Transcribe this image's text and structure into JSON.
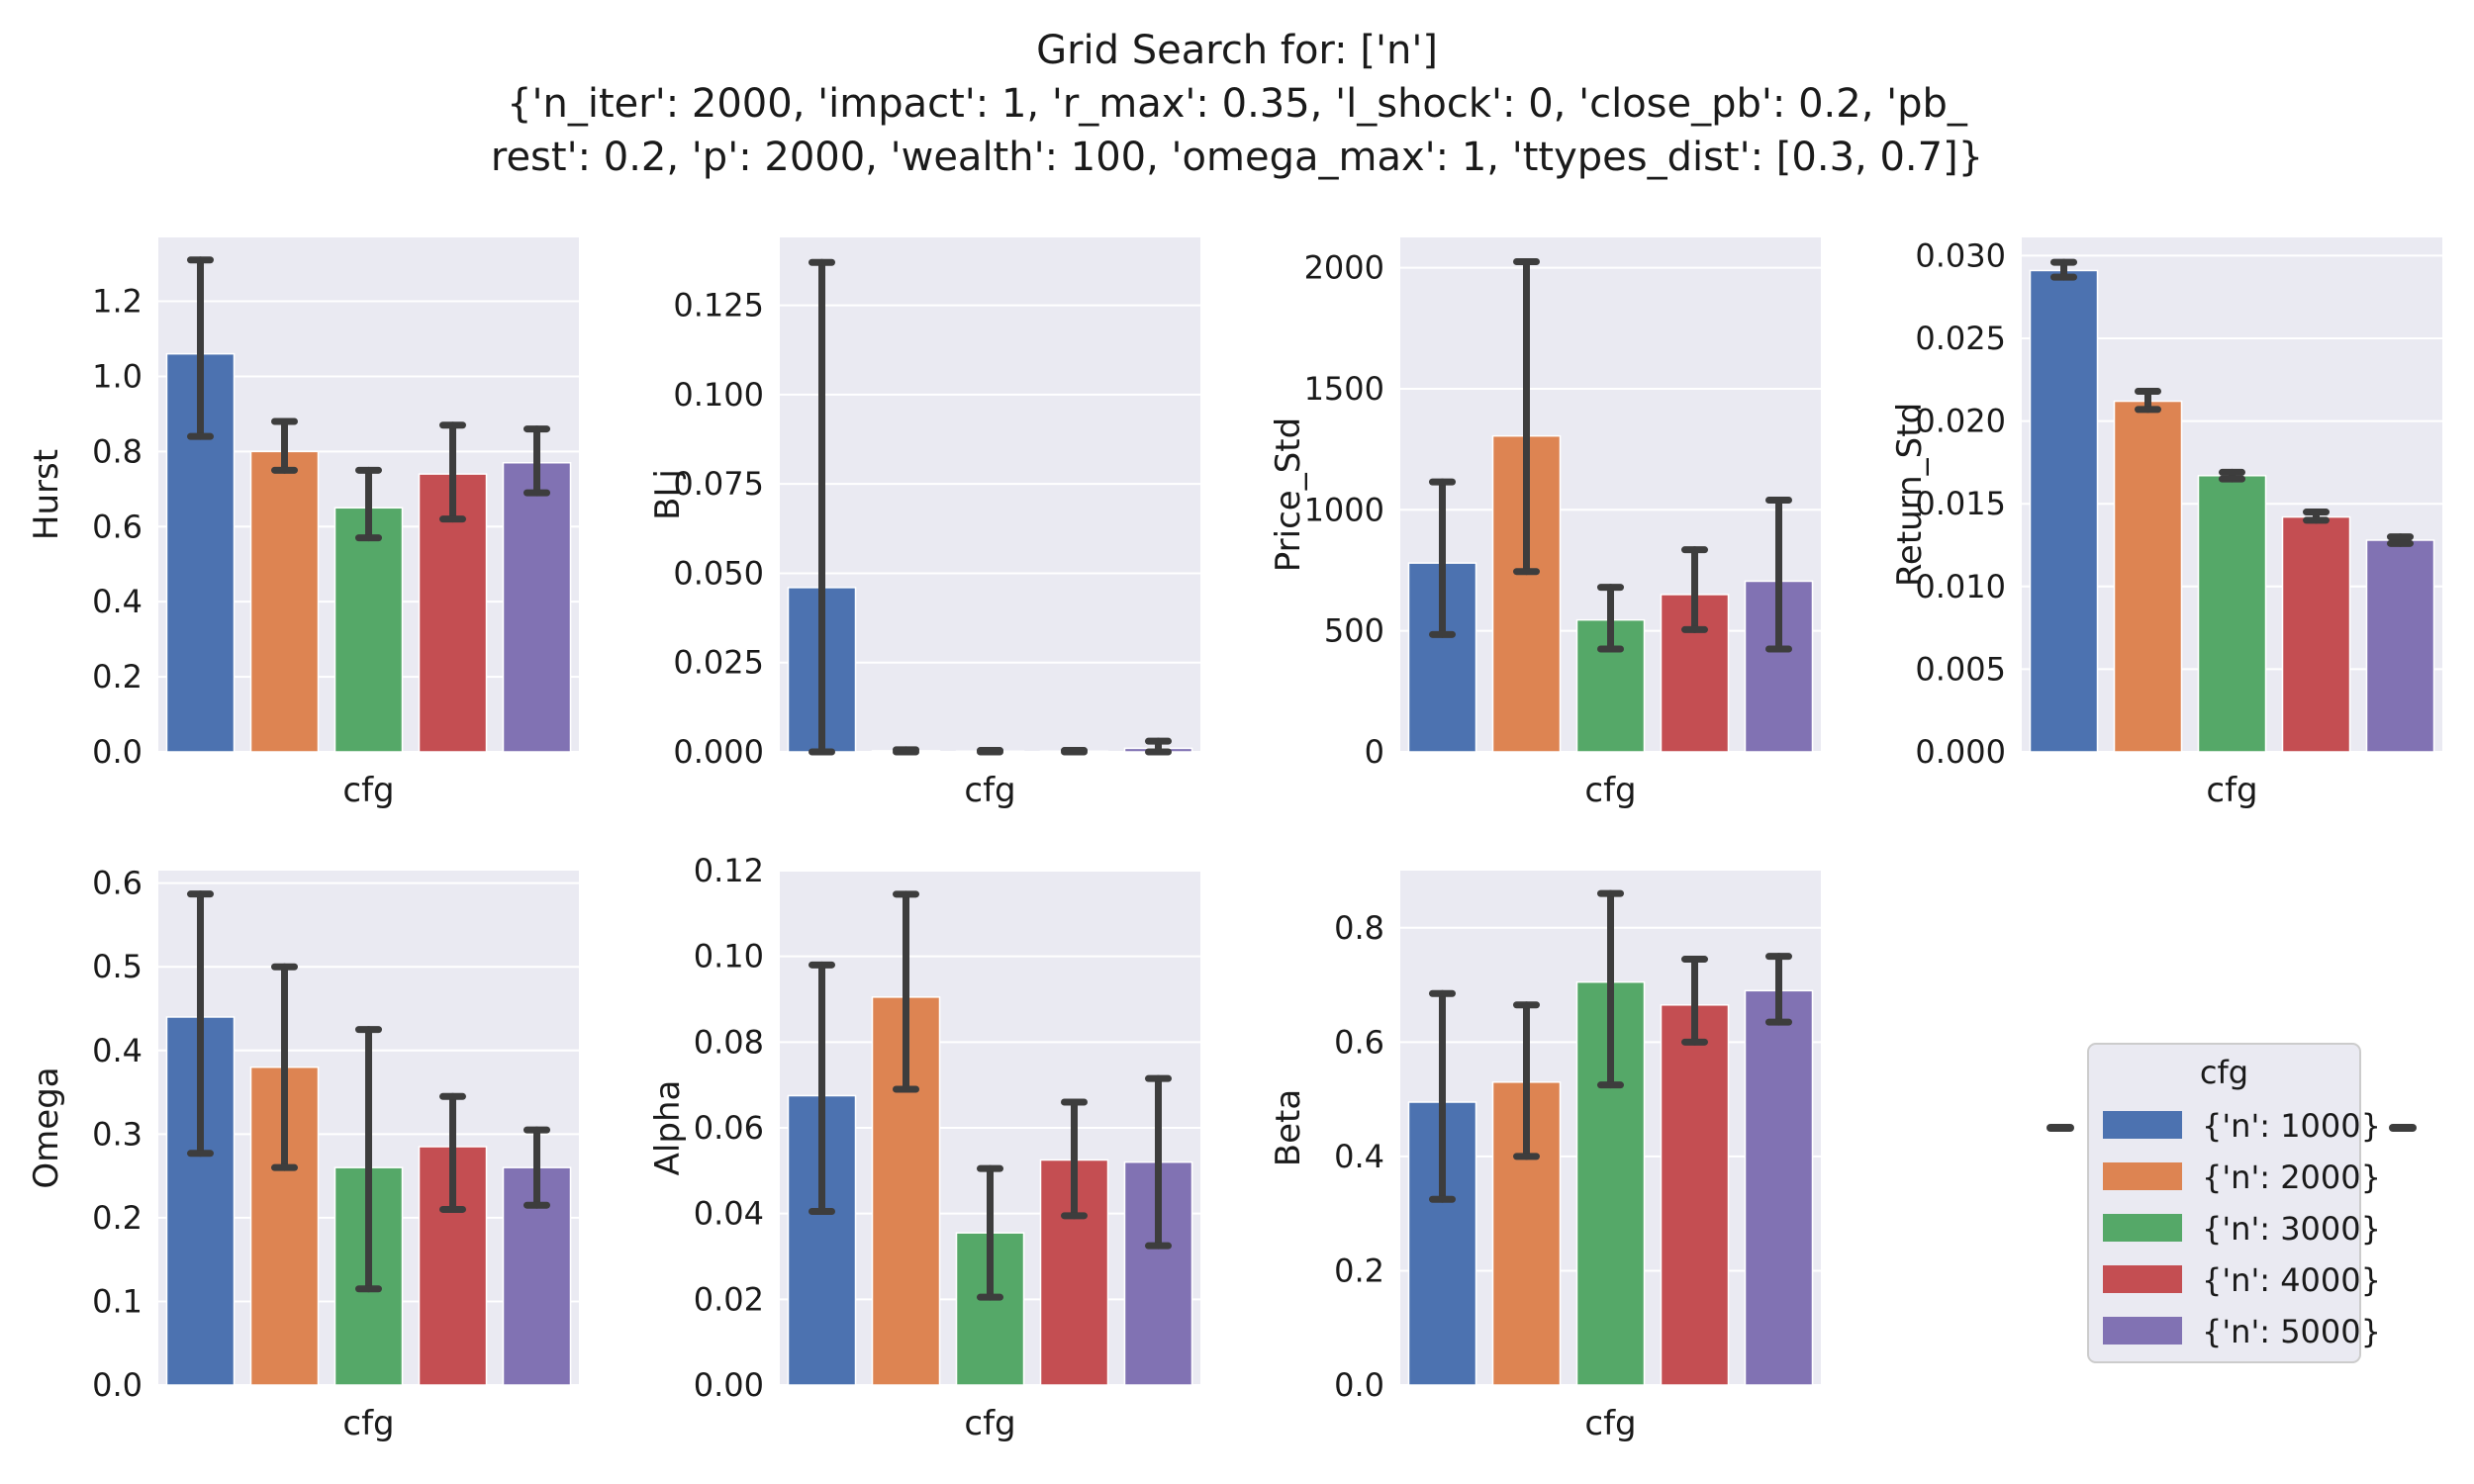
{
  "figure": {
    "title_lines": [
      "Grid Search for: ['n']",
      "{'n_iter': 2000, 'impact': 1, 'r_max': 0.35, 'l_shock': 0, 'close_pb': 0.2, 'pb_",
      "rest': 0.2, 'p': 2000, 'wealth': 100, 'omega_max': 1, 'ttypes_dist': [0.3, 0.7]}"
    ]
  },
  "legend": {
    "title": "cfg",
    "entries": [
      "{'n': 1000}",
      "{'n': 2000}",
      "{'n': 3000}",
      "{'n': 4000}",
      "{'n': 5000}"
    ],
    "colors": [
      "#4c72b0",
      "#dd8452",
      "#55a868",
      "#c44e52",
      "#8172b3"
    ]
  },
  "style": {
    "panel_bg": "#eaeaf2",
    "grid_color": "#ffffff",
    "errorbar_color": "#3d3d3d"
  },
  "chart_data": [
    {
      "type": "bar",
      "xlabel": "cfg",
      "ylabel": "Hurst",
      "categories": [
        "{'n': 1000}",
        "{'n': 2000}",
        "{'n': 3000}",
        "{'n': 4000}",
        "{'n': 5000}"
      ],
      "values": [
        1.06,
        0.8,
        0.65,
        0.74,
        0.77
      ],
      "ci_low": [
        0.84,
        0.75,
        0.57,
        0.62,
        0.69
      ],
      "ci_high": [
        1.31,
        0.88,
        0.75,
        0.87,
        0.86
      ],
      "ylim": [
        0,
        1.37
      ],
      "yticks": [
        0,
        0.2,
        0.4,
        0.6,
        0.8,
        1.0,
        1.2
      ],
      "ytick_labels": [
        "0.0",
        "0.2",
        "0.4",
        "0.6",
        "0.8",
        "1.0",
        "1.2"
      ]
    },
    {
      "type": "bar",
      "xlabel": "cfg",
      "ylabel": "BLj",
      "categories": [
        "{'n': 1000}",
        "{'n': 2000}",
        "{'n': 3000}",
        "{'n': 4000}",
        "{'n': 5000}"
      ],
      "values": [
        0.046,
        0.0003,
        0.0002,
        0.0002,
        0.001
      ],
      "ci_low": [
        0.0,
        0.0,
        0.0,
        0.0,
        0.0
      ],
      "ci_high": [
        0.137,
        0.0006,
        0.0004,
        0.0004,
        0.003
      ],
      "ylim": [
        0,
        0.144
      ],
      "yticks": [
        0,
        0.025,
        0.05,
        0.075,
        0.1,
        0.125
      ],
      "ytick_labels": [
        "0.000",
        "0.025",
        "0.050",
        "0.075",
        "0.100",
        "0.125"
      ]
    },
    {
      "type": "bar",
      "xlabel": "cfg",
      "ylabel": "Price_Std",
      "categories": [
        "{'n': 1000}",
        "{'n': 2000}",
        "{'n': 3000}",
        "{'n': 4000}",
        "{'n': 5000}"
      ],
      "values": [
        780,
        1305,
        545,
        650,
        705
      ],
      "ci_low": [
        485,
        745,
        425,
        505,
        425
      ],
      "ci_high": [
        1115,
        2025,
        680,
        835,
        1040
      ],
      "ylim": [
        0,
        2125
      ],
      "yticks": [
        0,
        500,
        1000,
        1500,
        2000
      ],
      "ytick_labels": [
        "0",
        "500",
        "1000",
        "1500",
        "2000"
      ]
    },
    {
      "type": "bar",
      "xlabel": "cfg",
      "ylabel": "Return_Std",
      "categories": [
        "{'n': 1000}",
        "{'n': 2000}",
        "{'n': 3000}",
        "{'n': 4000}",
        "{'n': 5000}"
      ],
      "values": [
        0.0291,
        0.0212,
        0.0167,
        0.0142,
        0.0128
      ],
      "ci_low": [
        0.0287,
        0.0207,
        0.0165,
        0.014,
        0.0126
      ],
      "ci_high": [
        0.0296,
        0.0218,
        0.0169,
        0.0145,
        0.013
      ],
      "ylim": [
        0,
        0.0311
      ],
      "yticks": [
        0,
        0.005,
        0.01,
        0.015,
        0.02,
        0.025,
        0.03
      ],
      "ytick_labels": [
        "0.000",
        "0.005",
        "0.010",
        "0.015",
        "0.020",
        "0.025",
        "0.030"
      ]
    },
    {
      "type": "bar",
      "xlabel": "cfg",
      "ylabel": "Omega",
      "categories": [
        "{'n': 1000}",
        "{'n': 2000}",
        "{'n': 3000}",
        "{'n': 4000}",
        "{'n': 5000}"
      ],
      "values": [
        0.44,
        0.38,
        0.26,
        0.285,
        0.26
      ],
      "ci_low": [
        0.277,
        0.26,
        0.115,
        0.21,
        0.215
      ],
      "ci_high": [
        0.587,
        0.5,
        0.425,
        0.345,
        0.305
      ],
      "ylim": [
        0,
        0.615
      ],
      "yticks": [
        0,
        0.1,
        0.2,
        0.3,
        0.4,
        0.5,
        0.6
      ],
      "ytick_labels": [
        "0.0",
        "0.1",
        "0.2",
        "0.3",
        "0.4",
        "0.5",
        "0.6"
      ]
    },
    {
      "type": "bar",
      "xlabel": "cfg",
      "ylabel": "Alpha",
      "categories": [
        "{'n': 1000}",
        "{'n': 2000}",
        "{'n': 3000}",
        "{'n': 4000}",
        "{'n': 5000}"
      ],
      "values": [
        0.0675,
        0.0905,
        0.0355,
        0.0525,
        0.052
      ],
      "ci_low": [
        0.0405,
        0.069,
        0.0205,
        0.0395,
        0.0325
      ],
      "ci_high": [
        0.098,
        0.1145,
        0.0505,
        0.066,
        0.0715
      ],
      "ylim": [
        0,
        0.12
      ],
      "yticks": [
        0,
        0.02,
        0.04,
        0.06,
        0.08,
        0.1,
        0.12
      ],
      "ytick_labels": [
        "0.00",
        "0.02",
        "0.04",
        "0.06",
        "0.08",
        "0.10",
        "0.12"
      ]
    },
    {
      "type": "bar",
      "xlabel": "cfg",
      "ylabel": "Beta",
      "categories": [
        "{'n': 1000}",
        "{'n': 2000}",
        "{'n': 3000}",
        "{'n': 4000}",
        "{'n': 5000}"
      ],
      "values": [
        0.495,
        0.53,
        0.705,
        0.665,
        0.69
      ],
      "ci_low": [
        0.325,
        0.4,
        0.525,
        0.6,
        0.635
      ],
      "ci_high": [
        0.685,
        0.665,
        0.86,
        0.745,
        0.75
      ],
      "ylim": [
        0,
        0.9
      ],
      "yticks": [
        0,
        0.2,
        0.4,
        0.6,
        0.8
      ],
      "ytick_labels": [
        "0.0",
        "0.2",
        "0.4",
        "0.6",
        "0.8"
      ]
    }
  ]
}
